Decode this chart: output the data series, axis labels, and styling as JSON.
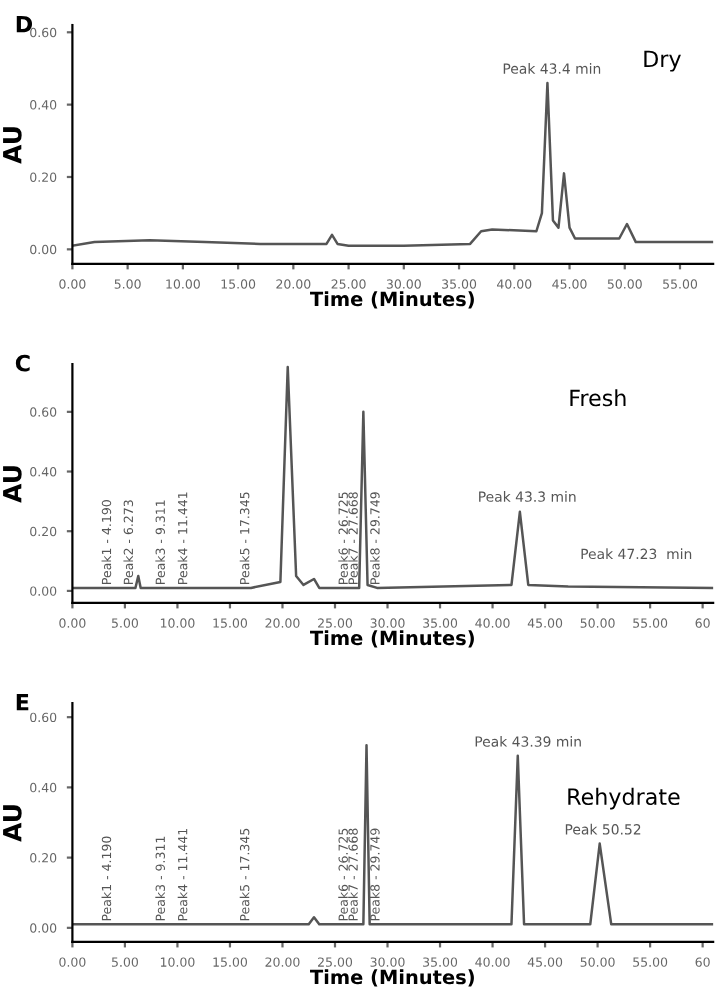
{
  "chart_data": [
    {
      "type": "line",
      "title": "D",
      "xlabel": "Time (Minutes)",
      "ylabel": "AU",
      "xlim": [
        0,
        58
      ],
      "ylim": [
        -0.04,
        0.62
      ],
      "xticks": [
        {
          "value": 0,
          "label": "0.00"
        },
        {
          "value": 5,
          "label": "5.00"
        },
        {
          "value": 10,
          "label": "10.00"
        },
        {
          "value": 15,
          "label": "15.00"
        },
        {
          "value": 20,
          "label": "20.00"
        },
        {
          "value": 25,
          "label": "25.00"
        },
        {
          "value": 30,
          "label": "30.00"
        },
        {
          "value": 35,
          "label": "35.00"
        },
        {
          "value": 40,
          "label": "40.00"
        },
        {
          "value": 45,
          "label": "45.00"
        },
        {
          "value": 50,
          "label": "50.00"
        },
        {
          "value": 55,
          "label": "55.00"
        }
      ],
      "yticks": [
        {
          "value": 0,
          "label": "0.00"
        },
        {
          "value": 0.2,
          "label": "0.20"
        },
        {
          "value": 0.4,
          "label": "0.40"
        },
        {
          "value": 0.6,
          "label": "0.60"
        }
      ],
      "series": [
        {
          "color": "#555555",
          "x": [
            0,
            2,
            7,
            12,
            17,
            22,
            23,
            23.5,
            24,
            25,
            30,
            36,
            37,
            38,
            42,
            42.5,
            43,
            43.5,
            44,
            44.5,
            45,
            45.5,
            47,
            49.5,
            50.2,
            51,
            53,
            58
          ],
          "values": [
            0.01,
            0.02,
            0.025,
            0.02,
            0.015,
            0.015,
            0.015,
            0.04,
            0.015,
            0.01,
            0.01,
            0.015,
            0.05,
            0.055,
            0.05,
            0.1,
            0.46,
            0.08,
            0.06,
            0.21,
            0.06,
            0.03,
            0.03,
            0.03,
            0.07,
            0.02,
            0.02,
            0.02
          ]
        }
      ],
      "annotations": [
        "Dry",
        {
          "text": "Peak 43.4 min",
          "x": 43.4,
          "y": 0.47
        }
      ],
      "grid": false,
      "legend": false
    },
    {
      "type": "line",
      "title": "C",
      "xlabel": "Time (Minutes)",
      "ylabel": "AU",
      "xlim": [
        0,
        61
      ],
      "ylim": [
        -0.04,
        0.76
      ],
      "xticks": [
        {
          "value": 0,
          "label": "0.00"
        },
        {
          "value": 5,
          "label": "5.00"
        },
        {
          "value": 10,
          "label": "10.00"
        },
        {
          "value": 15,
          "label": "15.00"
        },
        {
          "value": 20,
          "label": "20.00"
        },
        {
          "value": 25,
          "label": "25.00"
        },
        {
          "value": 30,
          "label": "30.00"
        },
        {
          "value": 35,
          "label": "35.00"
        },
        {
          "value": 40,
          "label": "40.00"
        },
        {
          "value": 45,
          "label": "45.00"
        },
        {
          "value": 50,
          "label": "50.00"
        },
        {
          "value": 55,
          "label": "55.00"
        },
        {
          "value": 60,
          "label": "60"
        }
      ],
      "yticks": [
        {
          "value": 0,
          "label": "0.00"
        },
        {
          "value": 0.2,
          "label": "0.20"
        },
        {
          "value": 0.4,
          "label": "0.40"
        },
        {
          "value": 0.6,
          "label": "0.60"
        }
      ],
      "series": [
        {
          "color": "#555555",
          "x": [
            0,
            4.19,
            6.0,
            6.27,
            6.5,
            17,
            19.8,
            20.5,
            21.3,
            22,
            23,
            23.5,
            27.3,
            27.7,
            28.1,
            29,
            41.8,
            42.6,
            43.4,
            47.2,
            61
          ],
          "values": [
            0.01,
            0.01,
            0.01,
            0.05,
            0.01,
            0.01,
            0.03,
            0.75,
            0.05,
            0.02,
            0.04,
            0.01,
            0.01,
            0.6,
            0.02,
            0.01,
            0.02,
            0.265,
            0.02,
            0.015,
            0.01
          ]
        }
      ],
      "annotations": [
        "Fresh",
        {
          "text": "Peak1 - 4.190",
          "x": 4.19,
          "y": 0.01
        },
        {
          "text": "Peak2 - 6.273",
          "x": 6.273,
          "y": 0.01
        },
        {
          "text": "Peak3 - 9.311",
          "x": 9.311,
          "y": 0.01
        },
        {
          "text": "Peak4 - 11.441",
          "x": 11.441,
          "y": 0.01
        },
        {
          "text": "Peak5 - 17.345",
          "x": 17.345,
          "y": 0.01
        },
        {
          "text": "Peak6 - 26.725",
          "x": 26.725,
          "y": 0.01
        },
        {
          "text": "Peak7 - 27.668",
          "x": 27.668,
          "y": 0.01
        },
        {
          "text": "Peak8 - 29.749",
          "x": 29.749,
          "y": 0.01
        },
        {
          "text": "Peak 43.3 min",
          "x": 43.3,
          "y": 0.28
        },
        "Peak 47.23  min"
      ],
      "grid": false,
      "legend": false
    },
    {
      "type": "line",
      "title": "E",
      "xlabel": "Time (Minutes)",
      "ylabel": "AU",
      "xlim": [
        0,
        61
      ],
      "ylim": [
        -0.04,
        0.64
      ],
      "xticks": [
        {
          "value": 0,
          "label": "0.00"
        },
        {
          "value": 5,
          "label": "5.00"
        },
        {
          "value": 10,
          "label": "10.00"
        },
        {
          "value": 15,
          "label": "15.00"
        },
        {
          "value": 20,
          "label": "20.00"
        },
        {
          "value": 25,
          "label": "25.00"
        },
        {
          "value": 30,
          "label": "30.00"
        },
        {
          "value": 35,
          "label": "35.00"
        },
        {
          "value": 40,
          "label": "40.00"
        },
        {
          "value": 45,
          "label": "45.00"
        },
        {
          "value": 50,
          "label": "50.00"
        },
        {
          "value": 55,
          "label": "55.00"
        },
        {
          "value": 60,
          "label": "60"
        }
      ],
      "yticks": [
        {
          "value": 0,
          "label": "0.00"
        },
        {
          "value": 0.2,
          "label": "0.20"
        },
        {
          "value": 0.4,
          "label": "0.40"
        },
        {
          "value": 0.6,
          "label": "0.60"
        }
      ],
      "series": [
        {
          "color": "#555555",
          "x": [
            0,
            17,
            22.5,
            23,
            23.5,
            27.7,
            28.0,
            28.3,
            41.8,
            42.4,
            43.0,
            49.3,
            50.2,
            51.3,
            61
          ],
          "values": [
            0.01,
            0.01,
            0.01,
            0.03,
            0.01,
            0.01,
            0.52,
            0.01,
            0.01,
            0.49,
            0.01,
            0.01,
            0.24,
            0.01,
            0.01
          ]
        }
      ],
      "annotations": [
        "Rehydrate",
        {
          "text": "Peak1 - 4.190",
          "x": 4.19,
          "y": 0.01
        },
        {
          "text": "Peak3 - 9.311",
          "x": 9.311,
          "y": 0.01
        },
        {
          "text": "Peak4 - 11.441",
          "x": 11.441,
          "y": 0.01
        },
        {
          "text": "Peak5 - 17.345",
          "x": 17.345,
          "y": 0.01
        },
        {
          "text": "Peak6 - 26.725",
          "x": 26.725,
          "y": 0.01
        },
        {
          "text": "Peak7 - 27.668",
          "x": 27.668,
          "y": 0.01
        },
        {
          "text": "Peak8 - 29.749",
          "x": 29.749,
          "y": 0.01
        },
        {
          "text": "Peak 43.39 min",
          "x": 43.39,
          "y": 0.5
        },
        {
          "text": "Peak 50.52",
          "x": 50.52,
          "y": 0.25
        }
      ],
      "grid": false,
      "legend": false
    }
  ]
}
